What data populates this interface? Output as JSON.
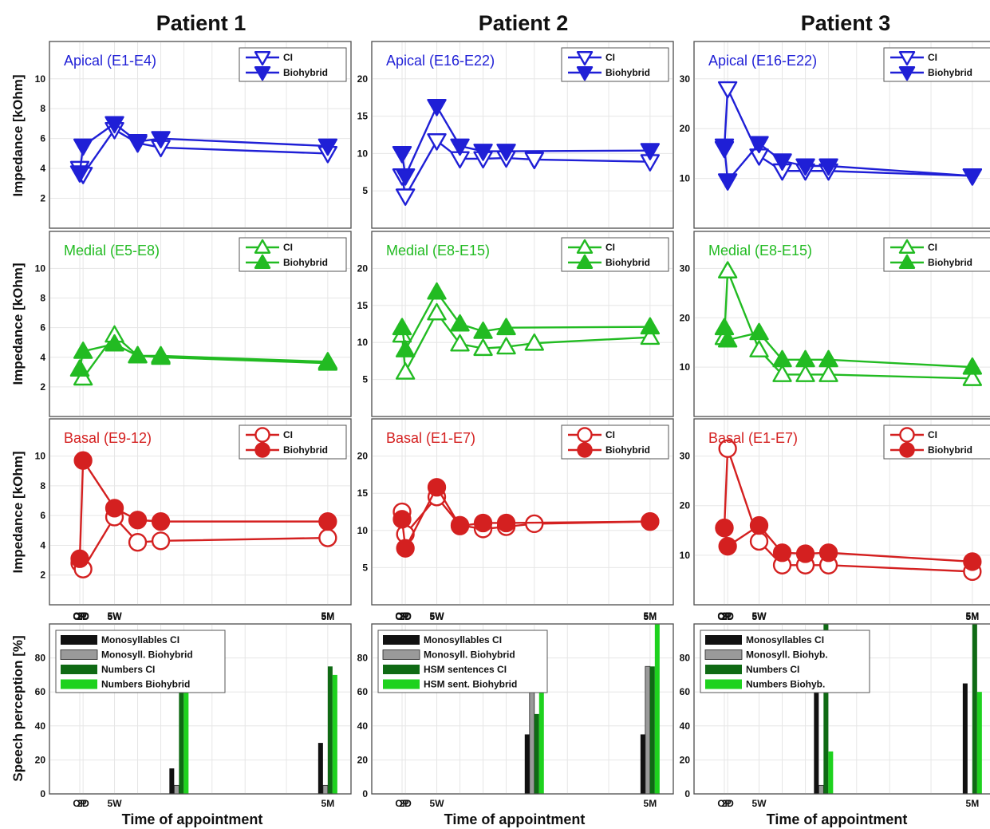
{
  "x_tick_labels": [
    "OP",
    "2D",
    "5W",
    "5M"
  ],
  "xlabel": "Time of appointment",
  "ylabel_impedance": "Impedance [kOhm]",
  "ylabel_speech": "Speech perception [%]",
  "colors": {
    "apical": "#1f1fd6",
    "medial": "#22bb22",
    "basal": "#d42020"
  },
  "legend_labels": [
    "CI",
    "Biohybrid"
  ],
  "chart_data": [
    {
      "patient": "Patient 1",
      "impedance_panels": [
        {
          "type": "line",
          "region": "apical",
          "title": "Apical (E1-E4)",
          "color": "apical",
          "marker": "triangle-down",
          "ylim": [
            0,
            12.5
          ],
          "yticks": [
            2,
            4,
            6,
            8,
            10
          ],
          "x_days": [
            0,
            2,
            21,
            35,
            49,
            150
          ],
          "series": [
            {
              "name": "CI",
              "values": [
                4.0,
                3.6,
                6.6,
                5.7,
                5.4,
                5.0
              ]
            },
            {
              "name": "Biohybrid",
              "values": [
                3.7,
                5.5,
                7.0,
                5.8,
                6.0,
                5.5
              ]
            }
          ]
        },
        {
          "type": "line",
          "region": "medial",
          "title": "Medial (E5-E8)",
          "color": "medial",
          "marker": "triangle-up",
          "ylim": [
            0,
            12.5
          ],
          "yticks": [
            2,
            4,
            6,
            8,
            10
          ],
          "x_days": [
            0,
            2,
            21,
            35,
            49,
            150
          ],
          "series": [
            {
              "name": "CI",
              "values": [
                3.2,
                2.6,
                5.5,
                4.1,
                4.0,
                3.6
              ]
            },
            {
              "name": "Biohybrid",
              "values": [
                3.2,
                4.4,
                4.9,
                4.1,
                4.1,
                3.7
              ]
            }
          ]
        },
        {
          "type": "line",
          "region": "basal",
          "title": "Basal (E9-12)",
          "color": "basal",
          "marker": "circle",
          "ylim": [
            0,
            12.5
          ],
          "yticks": [
            2,
            4,
            6,
            8,
            10
          ],
          "x_days": [
            0,
            2,
            21,
            35,
            49,
            150
          ],
          "series": [
            {
              "name": "CI",
              "values": [
                2.8,
                2.4,
                5.9,
                4.2,
                4.3,
                4.5
              ]
            },
            {
              "name": "Biohybrid",
              "values": [
                3.1,
                9.7,
                6.5,
                5.7,
                5.6,
                5.6
              ]
            }
          ]
        }
      ],
      "speech": {
        "type": "bar",
        "ylim": [
          0,
          100
        ],
        "yticks": [
          20,
          40,
          60,
          80
        ],
        "legend": [
          "Monosyllables CI",
          "Monosyll. Biohybrid",
          "Numbers CI",
          "Numbers Biohybrid"
        ],
        "groups": [
          {
            "x_day": 60,
            "values": [
              15,
              5,
              80,
              60
            ]
          },
          {
            "x_day": 150,
            "values": [
              30,
              5,
              75,
              70
            ]
          }
        ]
      }
    },
    {
      "patient": "Patient 2",
      "impedance_panels": [
        {
          "type": "line",
          "region": "apical",
          "title": "Apical (E16-E22)",
          "color": "apical",
          "marker": "triangle-down",
          "ylim": [
            0,
            25
          ],
          "yticks": [
            5,
            10,
            15,
            20
          ],
          "x_days": [
            0,
            2,
            21,
            35,
            49,
            63,
            80,
            150
          ],
          "series": [
            {
              "name": "CI",
              "values": [
                7.0,
                4.3,
                11.7,
                9.3,
                9.3,
                9.4,
                9.2,
                8.9
              ]
            },
            {
              "name": "Biohybrid",
              "values": [
                10.0,
                7.0,
                16.3,
                11.0,
                10.3,
                10.3,
                null,
                10.4
              ]
            }
          ]
        },
        {
          "type": "line",
          "region": "medial",
          "title": "Medial (E8-E15)",
          "color": "medial",
          "marker": "triangle-up",
          "ylim": [
            0,
            25
          ],
          "yticks": [
            5,
            10,
            15,
            20
          ],
          "x_days": [
            0,
            2,
            21,
            35,
            49,
            63,
            80,
            150
          ],
          "series": [
            {
              "name": "CI",
              "values": [
                11.0,
                6.0,
                14.0,
                9.8,
                9.2,
                9.4,
                9.9,
                10.7
              ]
            },
            {
              "name": "Biohybrid",
              "values": [
                12.0,
                9.0,
                16.8,
                12.5,
                11.5,
                12.0,
                null,
                12.1
              ]
            }
          ]
        },
        {
          "type": "line",
          "region": "basal",
          "title": "Basal (E1-E7)",
          "color": "basal",
          "marker": "circle",
          "ylim": [
            0,
            25
          ],
          "yticks": [
            5,
            10,
            15,
            20
          ],
          "x_days": [
            0,
            2,
            21,
            35,
            49,
            63,
            80,
            150
          ],
          "series": [
            {
              "name": "CI",
              "values": [
                12.5,
                9.5,
                14.5,
                10.7,
                10.2,
                10.5,
                10.9,
                11.2
              ]
            },
            {
              "name": "Biohybrid",
              "values": [
                11.5,
                7.6,
                15.8,
                10.6,
                11.0,
                11.0,
                null,
                11.2
              ]
            }
          ]
        }
      ],
      "speech": {
        "type": "bar",
        "ylim": [
          0,
          100
        ],
        "yticks": [
          20,
          40,
          60,
          80
        ],
        "legend": [
          "Monosyllables CI",
          "Monosyll. Biohybrid",
          "HSM sentences CI",
          "HSM sent. Biohybrid"
        ],
        "groups": [
          {
            "x_day": 80,
            "values": [
              35,
              70,
              47,
              92
            ]
          },
          {
            "x_day": 150,
            "values": [
              35,
              75,
              75,
              100
            ]
          }
        ]
      }
    },
    {
      "patient": "Patient 3",
      "impedance_panels": [
        {
          "type": "line",
          "region": "apical",
          "title": "Apical (E16-E22)",
          "color": "apical",
          "marker": "triangle-down",
          "ylim": [
            0,
            37.5
          ],
          "yticks": [
            10,
            20,
            30
          ],
          "x_days": [
            0,
            2,
            21,
            35,
            49,
            63,
            150
          ],
          "series": [
            {
              "name": "CI",
              "values": [
                16.0,
                28.0,
                14.5,
                11.5,
                11.5,
                11.5,
                10.5
              ]
            },
            {
              "name": "Biohybrid",
              "values": [
                16.5,
                9.5,
                17.0,
                13.5,
                12.5,
                12.5,
                10.5
              ]
            }
          ]
        },
        {
          "type": "line",
          "region": "medial",
          "title": "Medial (E8-E15)",
          "color": "medial",
          "marker": "triangle-up",
          "ylim": [
            0,
            37.5
          ],
          "yticks": [
            10,
            20,
            30
          ],
          "x_days": [
            0,
            2,
            21,
            35,
            49,
            63,
            150
          ],
          "series": [
            {
              "name": "CI",
              "values": [
                16.0,
                29.5,
                13.5,
                8.5,
                8.5,
                8.5,
                7.7
              ]
            },
            {
              "name": "Biohybrid",
              "values": [
                18.0,
                15.5,
                17.0,
                11.5,
                11.5,
                11.5,
                10.0
              ]
            }
          ]
        },
        {
          "type": "line",
          "region": "basal",
          "title": "Basal (E1-E7)",
          "color": "basal",
          "marker": "circle",
          "ylim": [
            0,
            37.5
          ],
          "yticks": [
            10,
            20,
            30
          ],
          "x_days": [
            0,
            2,
            21,
            35,
            49,
            63,
            150
          ],
          "series": [
            {
              "name": "CI",
              "values": [
                15.5,
                31.5,
                12.8,
                8.0,
                8.0,
                8.0,
                6.7
              ]
            },
            {
              "name": "Biohybrid",
              "values": [
                15.5,
                11.8,
                16.0,
                10.5,
                10.3,
                10.5,
                8.7
              ]
            }
          ]
        }
      ],
      "speech": {
        "type": "bar",
        "ylim": [
          0,
          100
        ],
        "yticks": [
          20,
          40,
          60,
          80
        ],
        "legend": [
          "Monosyllables CI",
          "Monosyll. Biohyb.",
          "Numbers CI",
          "Numbers Biohyb."
        ],
        "groups": [
          {
            "x_day": 60,
            "values": [
              75,
              5,
              100,
              25
            ]
          },
          {
            "x_day": 150,
            "values": [
              65,
              0,
              100,
              60
            ]
          }
        ]
      }
    }
  ]
}
